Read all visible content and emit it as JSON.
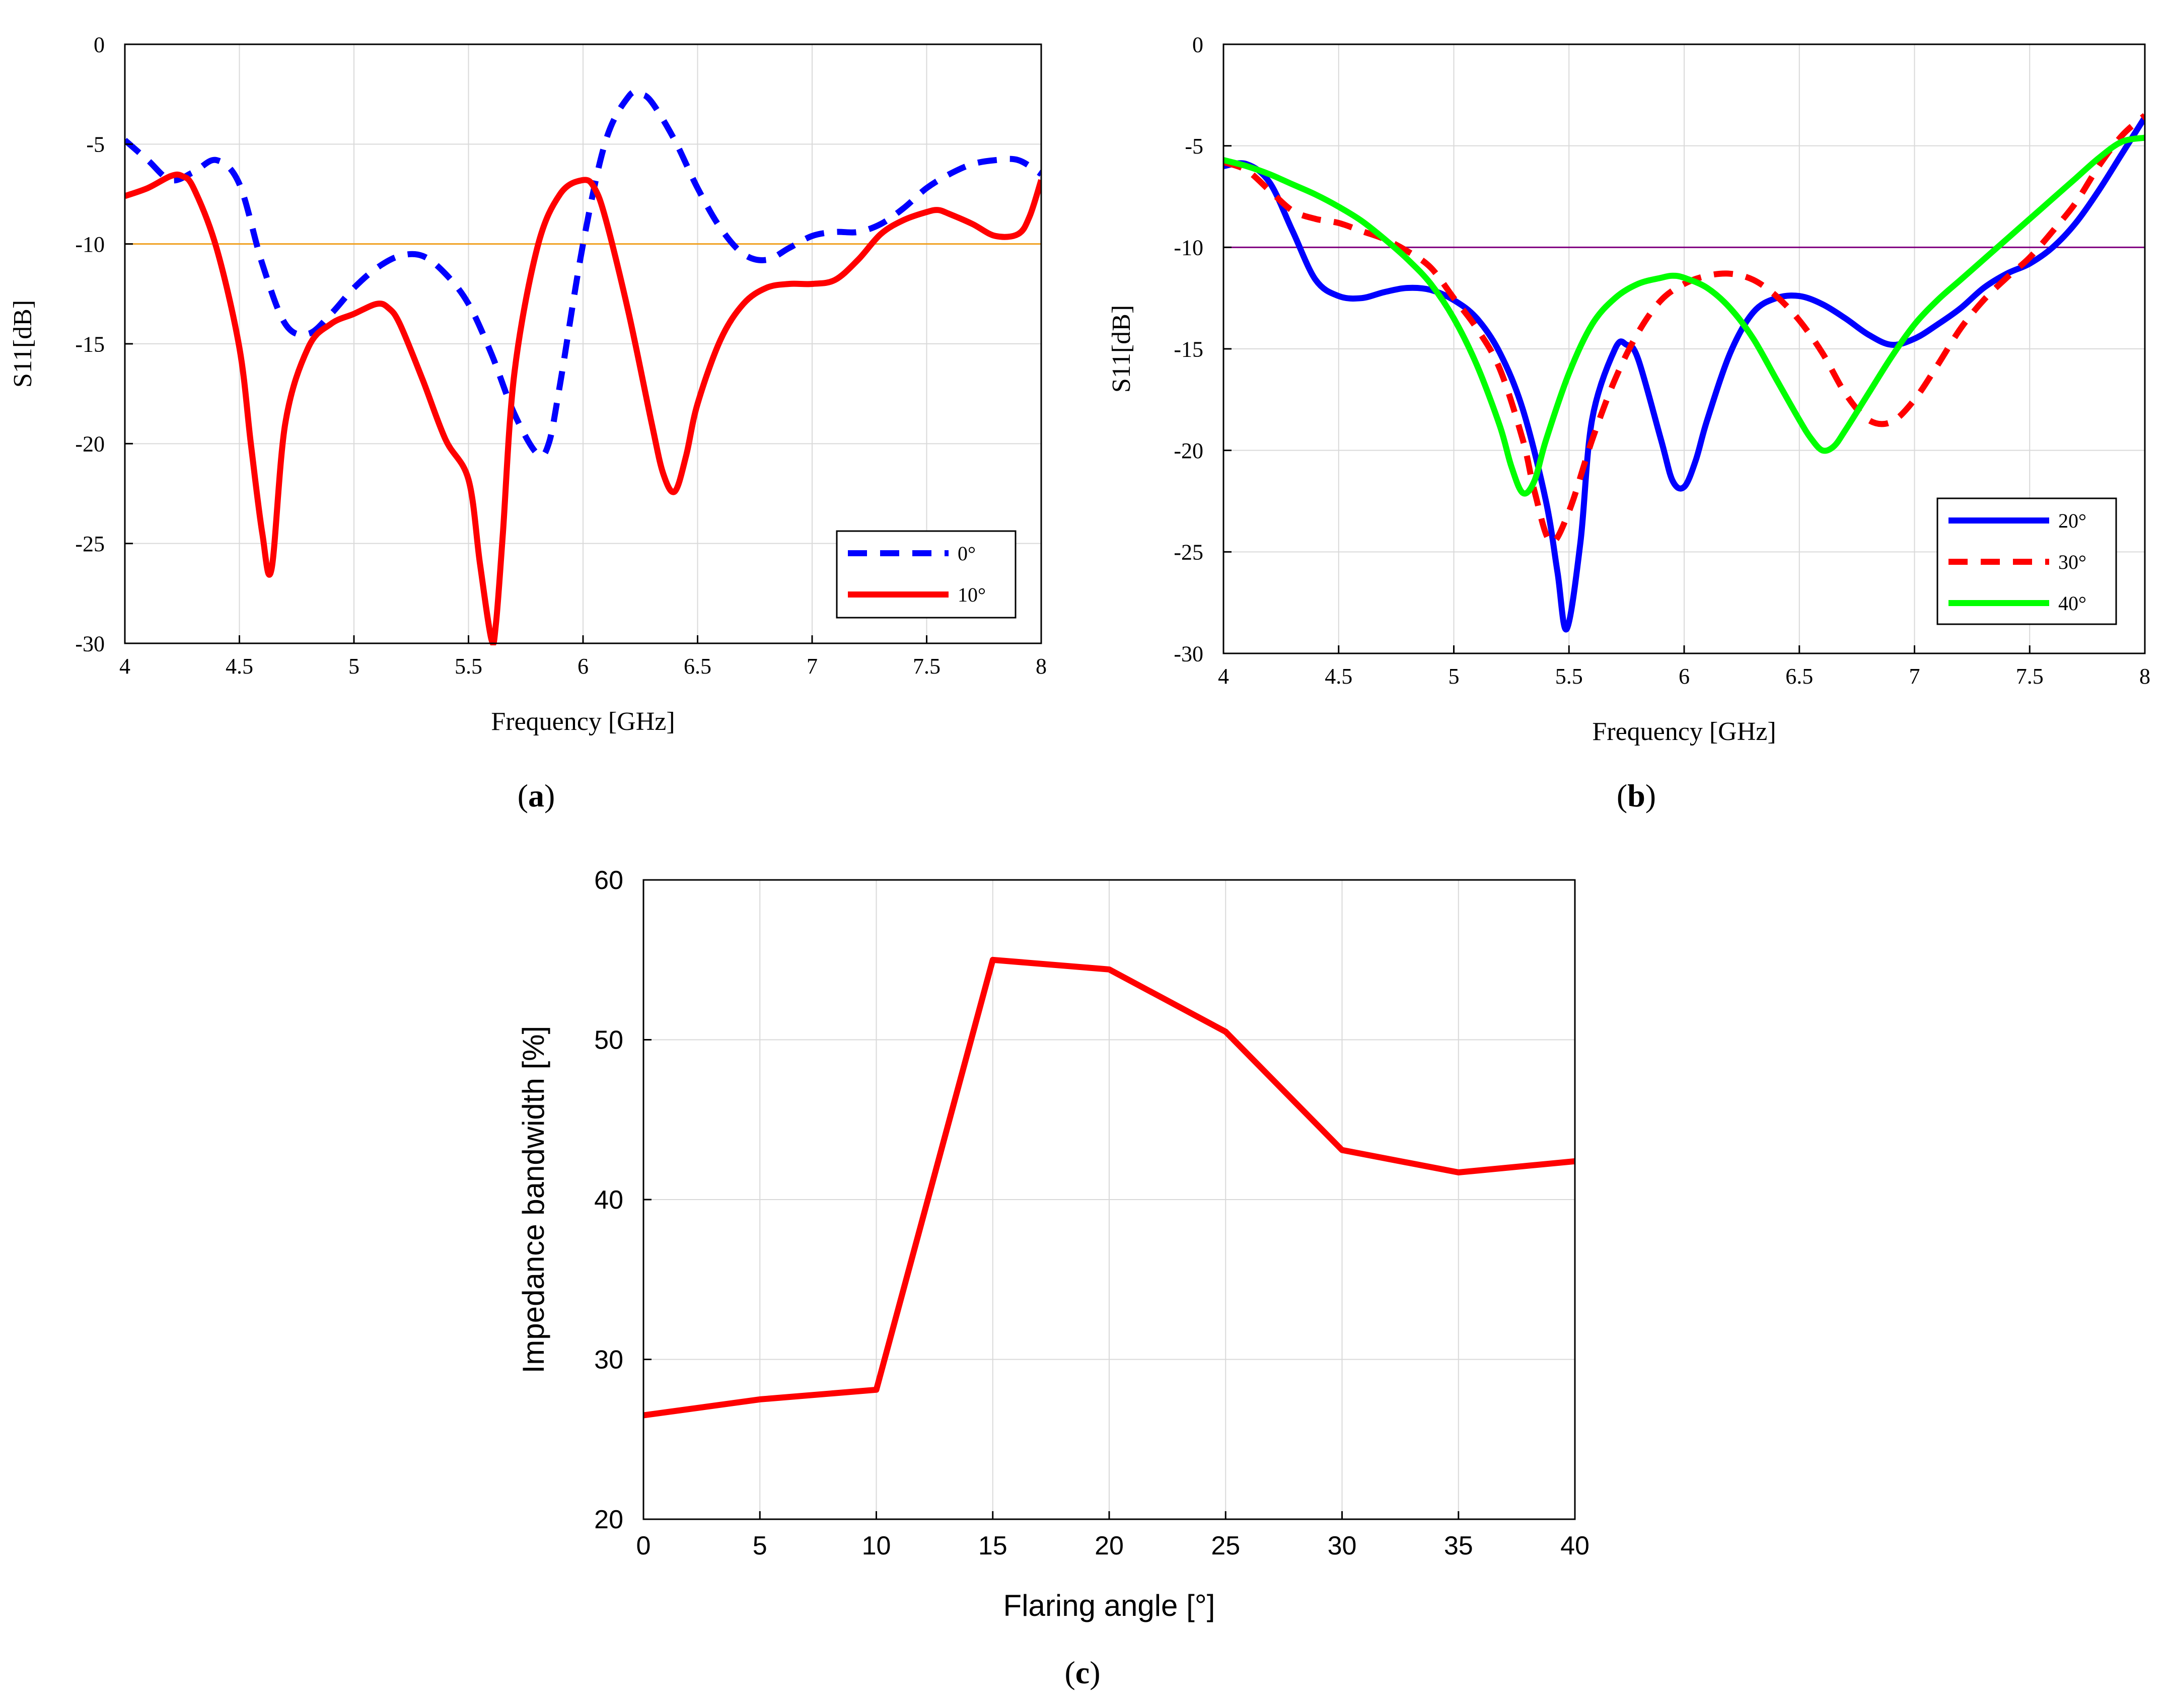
{
  "figure": {
    "label_a": "(a)",
    "label_b": "(b)",
    "label_c": "(c)",
    "letter_a": "a",
    "letter_b": "b",
    "letter_c": "c"
  },
  "colors": {
    "blue": "#0000FF",
    "red": "#FF0000",
    "green": "#00FF00",
    "orange_ref": "#F0A020",
    "purple_ref": "#800080",
    "grid": "#D9D9D9",
    "axis": "#000000"
  },
  "chart_data": [
    {
      "id": "a",
      "type": "line",
      "title": "",
      "xlabel": "Frequency [GHz]",
      "ylabel": "S11[dB]",
      "xlim": [
        4,
        8
      ],
      "ylim": [
        -30,
        0
      ],
      "xticks": [
        4,
        4.5,
        5,
        5.5,
        6,
        6.5,
        7,
        7.5,
        8
      ],
      "xtick_labels": [
        "4",
        "4.5",
        "5",
        "5.5",
        "6",
        "6.5",
        "7",
        "7.5",
        "8"
      ],
      "yticks": [
        0,
        -5,
        -10,
        -15,
        -20,
        -25,
        -30
      ],
      "ytick_labels": [
        "0",
        "-5",
        "-10",
        "-15",
        "-20",
        "-25",
        "-30"
      ],
      "grid": true,
      "legend_position": "bottom-right",
      "reference_line": {
        "y": -10,
        "color": "#F0A020"
      },
      "series": [
        {
          "name": "0°",
          "color": "#0000FF",
          "dash": "dashed",
          "x": [
            4.0,
            4.1,
            4.2,
            4.3,
            4.4,
            4.5,
            4.6,
            4.7,
            4.8,
            4.9,
            5.0,
            5.1,
            5.2,
            5.3,
            5.4,
            5.5,
            5.6,
            5.7,
            5.8,
            5.85,
            5.9,
            6.0,
            6.1,
            6.2,
            6.25,
            6.3,
            6.4,
            6.5,
            6.6,
            6.7,
            6.8,
            6.9,
            7.0,
            7.1,
            7.2,
            7.3,
            7.4,
            7.5,
            7.6,
            7.7,
            7.8,
            7.9,
            8.0
          ],
          "y": [
            -4.8,
            -5.8,
            -6.8,
            -6.4,
            -5.8,
            -7.0,
            -11.0,
            -14.0,
            -14.5,
            -13.5,
            -12.2,
            -11.2,
            -10.6,
            -10.6,
            -11.5,
            -13.0,
            -15.5,
            -18.5,
            -20.5,
            -20.0,
            -17.0,
            -10.0,
            -4.8,
            -2.6,
            -2.5,
            -2.9,
            -4.8,
            -7.2,
            -9.2,
            -10.5,
            -10.8,
            -10.2,
            -9.6,
            -9.4,
            -9.4,
            -9.0,
            -8.2,
            -7.2,
            -6.5,
            -6.0,
            -5.8,
            -5.8,
            -6.5
          ]
        },
        {
          "name": "10°",
          "color": "#FF0000",
          "dash": "solid",
          "x": [
            4.0,
            4.1,
            4.2,
            4.25,
            4.3,
            4.4,
            4.5,
            4.55,
            4.6,
            4.64,
            4.7,
            4.8,
            4.9,
            5.0,
            5.1,
            5.15,
            5.2,
            5.3,
            5.4,
            5.5,
            5.55,
            5.6,
            5.62,
            5.65,
            5.7,
            5.8,
            5.9,
            6.0,
            6.05,
            6.1,
            6.2,
            6.3,
            6.35,
            6.4,
            6.45,
            6.5,
            6.6,
            6.7,
            6.8,
            6.9,
            7.0,
            7.1,
            7.2,
            7.3,
            7.4,
            7.5,
            7.55,
            7.6,
            7.7,
            7.8,
            7.9,
            7.95,
            8.0
          ],
          "y": [
            -7.6,
            -7.2,
            -6.6,
            -6.6,
            -7.2,
            -10.2,
            -15.2,
            -20.0,
            -24.5,
            -26.3,
            -19.0,
            -15.2,
            -14.0,
            -13.5,
            -13.0,
            -13.2,
            -14.0,
            -16.8,
            -19.8,
            -21.8,
            -26.0,
            -29.8,
            -29.0,
            -24.5,
            -16.5,
            -10.2,
            -7.5,
            -6.8,
            -7.2,
            -8.8,
            -13.5,
            -19.0,
            -21.5,
            -22.4,
            -20.6,
            -18.0,
            -14.8,
            -13.0,
            -12.2,
            -12.0,
            -12.0,
            -11.8,
            -10.8,
            -9.5,
            -8.8,
            -8.4,
            -8.3,
            -8.5,
            -9.0,
            -9.6,
            -9.5,
            -8.6,
            -6.8
          ]
        }
      ]
    },
    {
      "id": "b",
      "type": "line",
      "title": "",
      "xlabel": "Frequency [GHz]",
      "ylabel": "S11[dB]",
      "xlim": [
        4,
        8
      ],
      "ylim": [
        -30,
        0
      ],
      "xticks": [
        4,
        4.5,
        5,
        5.5,
        6,
        6.5,
        7,
        7.5,
        8
      ],
      "xtick_labels": [
        "4",
        "4.5",
        "5",
        "5.5",
        "6",
        "6.5",
        "7",
        "7.5",
        "8"
      ],
      "yticks": [
        0,
        -5,
        -10,
        -15,
        -20,
        -25,
        -30
      ],
      "ytick_labels": [
        "0",
        "-5",
        "-10",
        "-15",
        "-20",
        "-25",
        "-30"
      ],
      "grid": true,
      "legend_position": "bottom-right",
      "reference_line": {
        "y": -10,
        "color": "#800080"
      },
      "series": [
        {
          "name": "20°",
          "color": "#0000FF",
          "dash": "solid",
          "x": [
            4.0,
            4.1,
            4.2,
            4.3,
            4.4,
            4.5,
            4.6,
            4.7,
            4.8,
            4.9,
            5.0,
            5.1,
            5.2,
            5.3,
            5.4,
            5.45,
            5.49,
            5.55,
            5.6,
            5.7,
            5.75,
            5.8,
            5.9,
            5.95,
            6.0,
            6.05,
            6.1,
            6.2,
            6.3,
            6.4,
            6.5,
            6.6,
            6.7,
            6.8,
            6.9,
            7.0,
            7.1,
            7.2,
            7.3,
            7.4,
            7.5,
            7.6,
            7.7,
            7.8,
            7.9,
            8.0
          ],
          "y": [
            -6.0,
            -5.9,
            -6.8,
            -9.2,
            -11.6,
            -12.4,
            -12.5,
            -12.2,
            -12.0,
            -12.1,
            -12.6,
            -13.5,
            -15.2,
            -18.0,
            -22.5,
            -26.0,
            -28.8,
            -24.5,
            -18.5,
            -15.0,
            -14.8,
            -15.5,
            -19.5,
            -21.5,
            -21.8,
            -20.5,
            -18.5,
            -15.2,
            -13.2,
            -12.5,
            -12.4,
            -12.8,
            -13.5,
            -14.3,
            -14.8,
            -14.5,
            -13.8,
            -13.0,
            -12.0,
            -11.3,
            -10.8,
            -10.0,
            -8.8,
            -7.2,
            -5.4,
            -3.6
          ]
        },
        {
          "name": "30°",
          "color": "#FF0000",
          "dash": "dashed",
          "x": [
            4.0,
            4.1,
            4.2,
            4.3,
            4.4,
            4.5,
            4.6,
            4.7,
            4.8,
            4.9,
            5.0,
            5.1,
            5.2,
            5.3,
            5.35,
            5.42,
            5.5,
            5.6,
            5.7,
            5.8,
            5.9,
            6.0,
            6.1,
            6.2,
            6.3,
            6.4,
            6.5,
            6.6,
            6.7,
            6.8,
            6.9,
            7.0,
            7.1,
            7.2,
            7.3,
            7.4,
            7.5,
            7.6,
            7.7,
            7.8,
            7.9,
            8.0
          ],
          "y": [
            -5.8,
            -6.2,
            -7.2,
            -8.2,
            -8.6,
            -8.8,
            -9.2,
            -9.6,
            -10.2,
            -11.0,
            -12.5,
            -14.0,
            -16.0,
            -19.5,
            -22.0,
            -24.5,
            -23.0,
            -19.5,
            -16.5,
            -14.2,
            -12.6,
            -11.8,
            -11.4,
            -11.3,
            -11.6,
            -12.4,
            -13.6,
            -15.2,
            -17.2,
            -18.5,
            -18.6,
            -17.5,
            -15.8,
            -14.0,
            -12.6,
            -11.5,
            -10.5,
            -9.2,
            -7.8,
            -6.0,
            -4.5,
            -3.5
          ]
        },
        {
          "name": "40°",
          "color": "#00FF00",
          "dash": "solid",
          "x": [
            4.0,
            4.1,
            4.2,
            4.3,
            4.4,
            4.5,
            4.6,
            4.7,
            4.8,
            4.9,
            5.0,
            5.1,
            5.2,
            5.25,
            5.3,
            5.35,
            5.4,
            5.5,
            5.6,
            5.7,
            5.8,
            5.9,
            5.95,
            6.0,
            6.1,
            6.2,
            6.3,
            6.4,
            6.5,
            6.55,
            6.6,
            6.65,
            6.7,
            6.8,
            6.9,
            7.0,
            7.1,
            7.2,
            7.3,
            7.4,
            7.5,
            7.6,
            7.7,
            7.8,
            7.9,
            8.0
          ],
          "y": [
            -5.7,
            -6.0,
            -6.4,
            -6.9,
            -7.4,
            -8.0,
            -8.7,
            -9.6,
            -10.6,
            -11.8,
            -13.5,
            -15.8,
            -18.8,
            -20.8,
            -22.1,
            -21.5,
            -19.5,
            -16.2,
            -13.8,
            -12.5,
            -11.8,
            -11.5,
            -11.4,
            -11.5,
            -12.0,
            -13.0,
            -14.5,
            -16.5,
            -18.5,
            -19.4,
            -20.0,
            -19.8,
            -19.0,
            -17.2,
            -15.4,
            -13.8,
            -12.6,
            -11.6,
            -10.6,
            -9.6,
            -8.6,
            -7.6,
            -6.6,
            -5.6,
            -4.8,
            -4.6
          ]
        }
      ]
    },
    {
      "id": "c",
      "type": "line",
      "title": "",
      "xlabel": "Flaring angle [°]",
      "ylabel": "Impedance bandwidth [%]",
      "xlim": [
        0,
        40
      ],
      "ylim": [
        20,
        60
      ],
      "xticks": [
        0,
        5,
        10,
        15,
        20,
        25,
        30,
        35,
        40
      ],
      "xtick_labels": [
        "0",
        "5",
        "10",
        "15",
        "20",
        "25",
        "30",
        "35",
        "40"
      ],
      "yticks": [
        20,
        30,
        40,
        50,
        60
      ],
      "ytick_labels": [
        "20",
        "30",
        "40",
        "50",
        "60"
      ],
      "grid": true,
      "series": [
        {
          "name": "Impedance bandwidth",
          "color": "#FF0000",
          "dash": "solid",
          "x": [
            0,
            5,
            10,
            15,
            20,
            25,
            30,
            35,
            40
          ],
          "y": [
            26.5,
            27.5,
            28.1,
            55.0,
            54.4,
            50.5,
            43.1,
            41.7,
            42.4
          ]
        }
      ]
    }
  ]
}
